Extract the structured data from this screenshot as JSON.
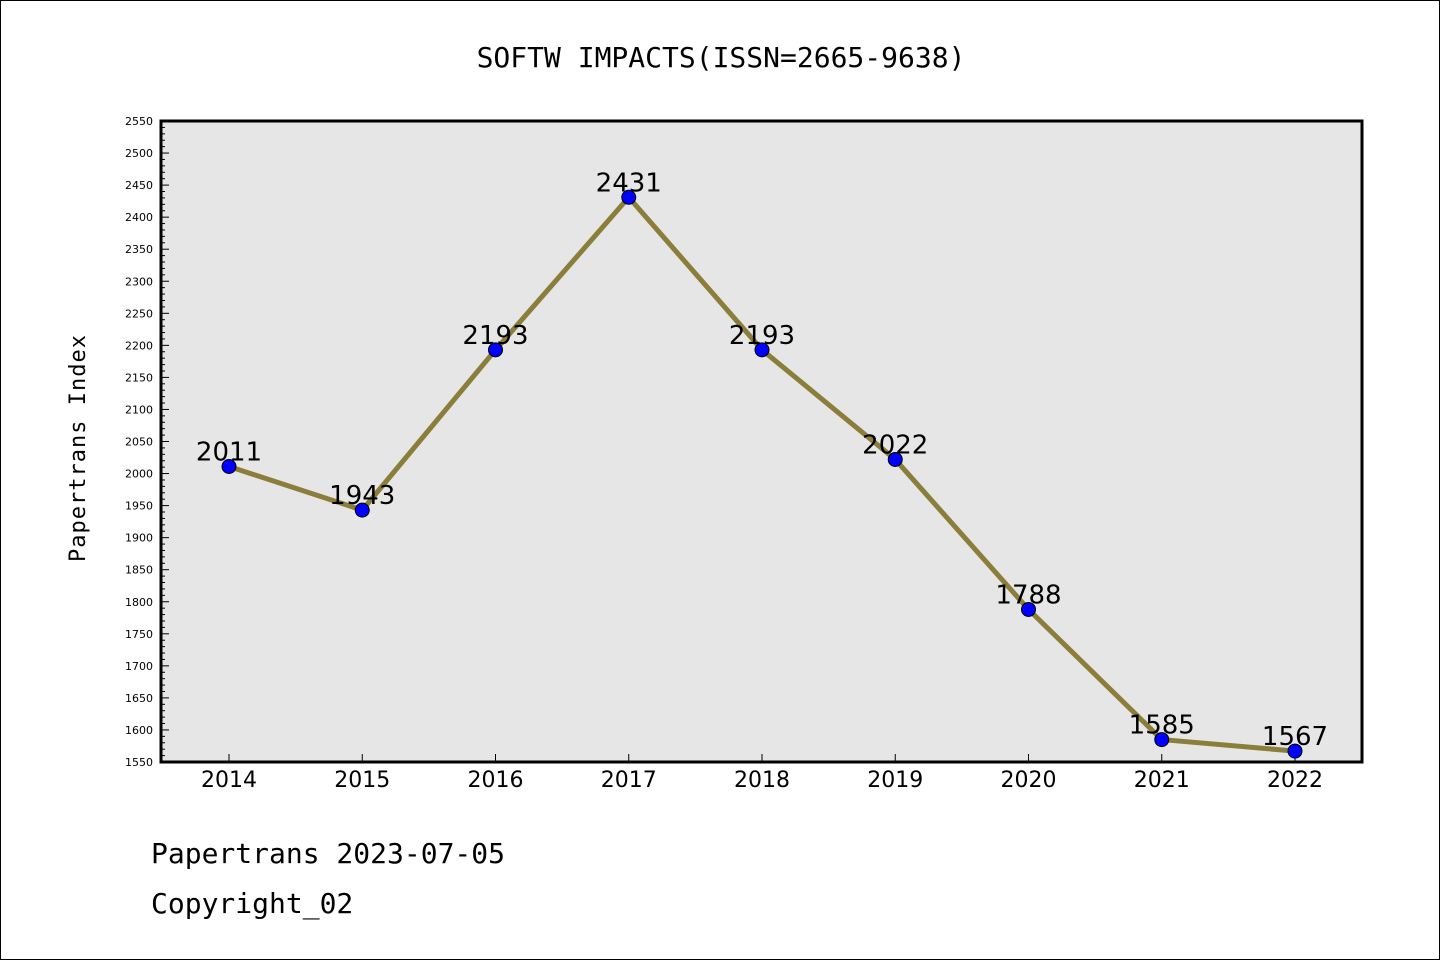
{
  "chart_data": {
    "type": "line",
    "title": "SOFTW IMPACTS(ISSN=2665-9638)",
    "xlabel": "",
    "ylabel": "Papertrans Index",
    "categories": [
      "2014",
      "2015",
      "2016",
      "2017",
      "2018",
      "2019",
      "2020",
      "2021",
      "2022"
    ],
    "values": [
      2011,
      1943,
      2193,
      2431,
      2193,
      2022,
      1788,
      1585,
      1567
    ],
    "ylim": [
      1550,
      2550
    ],
    "yticks": [
      1550,
      1600,
      1650,
      1700,
      1750,
      1800,
      1850,
      1900,
      1950,
      2000,
      2050,
      2100,
      2150,
      2200,
      2250,
      2300,
      2350,
      2400,
      2450,
      2500,
      2550
    ],
    "grid": false,
    "legend": "none",
    "colors": {
      "line": "#8B7D3A",
      "marker": "#0000FF",
      "plot_background": "#E6E6E6"
    }
  },
  "footer": {
    "line1": "Papertrans 2023-07-05",
    "line2": "Copyright_02"
  }
}
